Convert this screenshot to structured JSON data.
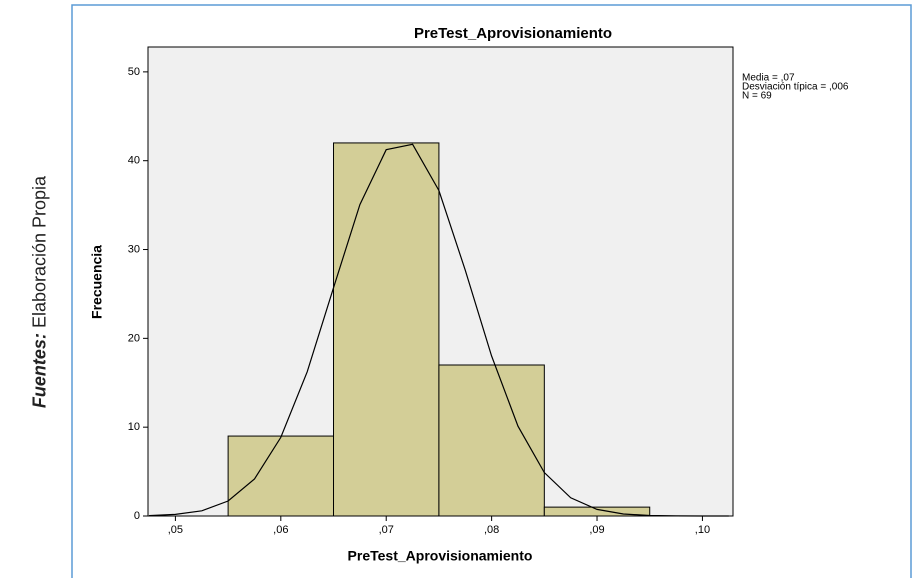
{
  "source": {
    "label": "Fuentes:",
    "text": "Elaboración Propia"
  },
  "chart_data": {
    "type": "histogram",
    "title": "PreTest_Aprovisionamiento",
    "x_label": "PreTest_Aprovisionamiento",
    "y_label": "Frecuencia",
    "annotations": [
      "Media = ,07",
      "Desviación típica = ,006",
      "N = 69"
    ],
    "bins": [
      0.055,
      0.065,
      0.075,
      0.085,
      0.095
    ],
    "values": [
      9,
      42,
      17,
      1
    ],
    "color": "#d3ce97",
    "xlim": [
      0.0474,
      0.1029
    ],
    "ylim": [
      0,
      52.8
    ],
    "xticks": [
      {
        "value": 0.05,
        "label": ",05"
      },
      {
        "value": 0.06,
        "label": ",06"
      },
      {
        "value": 0.07,
        "label": ",07"
      },
      {
        "value": 0.08,
        "label": ",08"
      },
      {
        "value": 0.09,
        "label": ",09"
      },
      {
        "value": 0.1,
        "label": ",10"
      }
    ],
    "yticks": [
      0,
      10,
      20,
      30,
      40,
      50
    ],
    "curve": {
      "x": [
        0.0475,
        0.05,
        0.0525,
        0.055,
        0.0575,
        0.06,
        0.0625,
        0.065,
        0.0675,
        0.07,
        0.0725,
        0.075,
        0.0775,
        0.08,
        0.0825,
        0.085,
        0.0875,
        0.09,
        0.0925,
        0.095,
        0.0975,
        0.1,
        0.1025
      ],
      "values": [
        0.05,
        0.18,
        0.59,
        1.69,
        4.16,
        8.85,
        16.23,
        25.69,
        35.06,
        41.24,
        41.85,
        36.64,
        27.66,
        18.01,
        10.11,
        4.9,
        2.05,
        0.74,
        0.23,
        0.06,
        0.01,
        0,
        0
      ]
    }
  }
}
